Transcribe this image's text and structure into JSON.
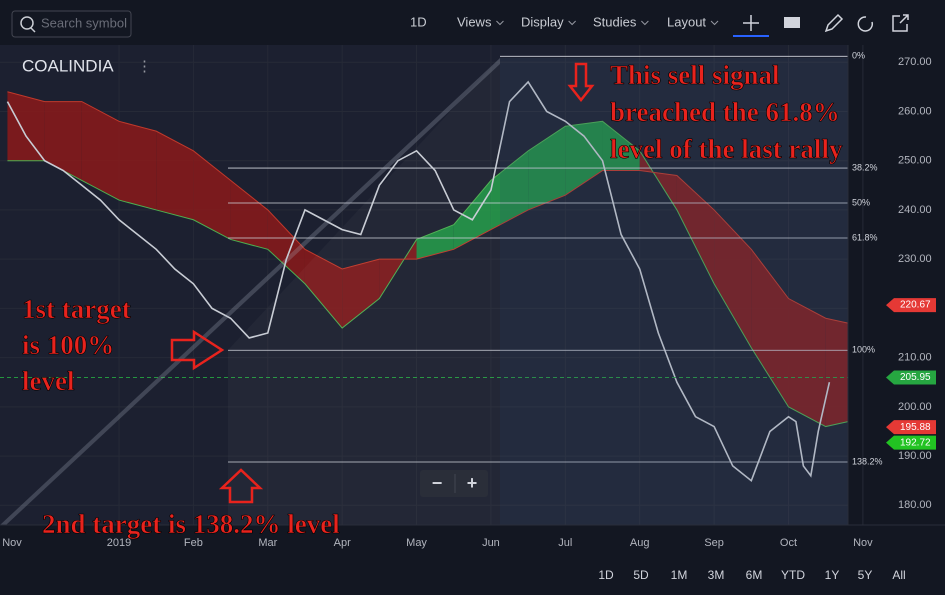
{
  "toolbar": {
    "search_placeholder": "Search symbol",
    "items": [
      "1D",
      "Views",
      "Display",
      "Studies",
      "Layout"
    ]
  },
  "symbol": "COALINDIA",
  "chart_data": {
    "type": "line",
    "color": "#c8ccd4",
    "x": [
      0.5,
      0.75,
      1,
      1.25,
      1.5,
      1.75,
      2,
      2.25,
      2.5,
      2.75,
      3,
      3.25,
      3.5,
      3.75,
      4,
      4.25,
      4.5,
      4.75,
      5,
      5.25,
      5.5,
      5.75,
      6,
      6.25,
      6.5,
      6.75,
      7,
      7.25,
      7.5,
      7.75,
      8,
      8.25,
      8.5,
      8.75,
      9,
      9.25,
      9.5,
      9.75,
      10,
      10.25,
      10.5,
      10.75,
      11,
      11.1,
      11.2,
      11.3,
      11.4,
      11.55
    ],
    "values": [
      262,
      255,
      250,
      248,
      245,
      242,
      238,
      235,
      232,
      228,
      225,
      220,
      218,
      214,
      215,
      230,
      240,
      238,
      236,
      235,
      245,
      250,
      252,
      248,
      240,
      238,
      244,
      262,
      266,
      260,
      258,
      255,
      250,
      235,
      228,
      215,
      205,
      198,
      196,
      188,
      185,
      195,
      198,
      197,
      188,
      186,
      195,
      205
    ],
    "cloud": {
      "x": [
        0.5,
        1,
        1.5,
        2,
        2.5,
        3,
        3.5,
        4,
        4.5,
        5,
        5.5,
        6,
        6.5,
        7,
        7.5,
        8,
        8.5,
        9,
        9.5,
        10,
        10.5,
        11,
        11.5,
        11.8
      ],
      "span_a": [
        250,
        250,
        246,
        242,
        240,
        238,
        234,
        232,
        225,
        216,
        222,
        234,
        237,
        246,
        252,
        257,
        258,
        252,
        240,
        225,
        212,
        200,
        196,
        197
      ],
      "span_b": [
        264,
        262,
        262,
        258,
        256,
        252,
        246,
        240,
        232,
        228,
        230,
        230,
        232,
        236,
        240,
        243,
        248,
        248,
        247,
        240,
        232,
        222,
        218,
        217
      ],
      "up_color": "#1e9e47",
      "down_color": "#8b1a1a"
    },
    "xlim": [
      0.4,
      11.8
    ],
    "ylim": [
      176,
      273.5
    ],
    "xticks": [
      {
        "value": 0,
        "label": "Nov"
      },
      {
        "value": 2,
        "label": "2019"
      },
      {
        "value": 3,
        "label": "Feb"
      },
      {
        "value": 4,
        "label": "Mar"
      },
      {
        "value": 5,
        "label": "Apr"
      },
      {
        "value": 6,
        "label": "May"
      },
      {
        "value": 7,
        "label": "Jun"
      },
      {
        "value": 8,
        "label": "Jul"
      },
      {
        "value": 9,
        "label": "Aug"
      },
      {
        "value": 10,
        "label": "Sep"
      },
      {
        "value": 11,
        "label": "Oct"
      },
      {
        "value": 12,
        "label": "Nov"
      }
    ],
    "yticks": [
      {
        "value": 180,
        "label": "180.00"
      },
      {
        "value": 190,
        "label": "190.00"
      },
      {
        "value": 200,
        "label": "200.00"
      },
      {
        "value": 210,
        "label": "210.00"
      },
      {
        "value": 220,
        "label": "220.00"
      },
      {
        "value": 230,
        "label": "230.00"
      },
      {
        "value": 240,
        "label": "240.00"
      },
      {
        "value": 250,
        "label": "250.00"
      },
      {
        "value": 260,
        "label": "260.00"
      },
      {
        "value": 270,
        "label": "270.00"
      }
    ],
    "grid": true,
    "fib_levels": [
      {
        "value": 271.2,
        "label": "0%"
      },
      {
        "value": 248.5,
        "label": "38.2%"
      },
      {
        "value": 241.4,
        "label": "50%"
      },
      {
        "value": 234.3,
        "label": "61.8%"
      },
      {
        "value": 211.5,
        "label": "100%"
      },
      {
        "value": 188.8,
        "label": "138.2%"
      }
    ],
    "price_tags": [
      {
        "value": 220.67,
        "color": "#e53935"
      },
      {
        "value": 205.95,
        "color": "#26a641"
      },
      {
        "value": 195.88,
        "color": "#e53935"
      },
      {
        "value": 192.72,
        "color": "#22c322"
      }
    ],
    "annotations": [
      [
        "This sell signal",
        "breached the 61.8%",
        "level of the last rally"
      ],
      [
        "1st target",
        "is 100%",
        "level"
      ],
      [
        "2nd target is 138.2% level"
      ]
    ]
  },
  "zoom": [
    "−",
    "+"
  ],
  "ranges": [
    "1D",
    "5D",
    "1M",
    "3M",
    "6M",
    "YTD",
    "1Y",
    "5Y",
    "All"
  ]
}
